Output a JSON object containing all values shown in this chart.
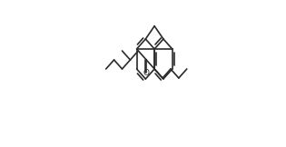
{
  "background_color": "#ffffff",
  "line_color": "#2a2a2a",
  "line_width": 1.2,
  "figsize": [
    3.15,
    1.62
  ],
  "dpi": 100
}
